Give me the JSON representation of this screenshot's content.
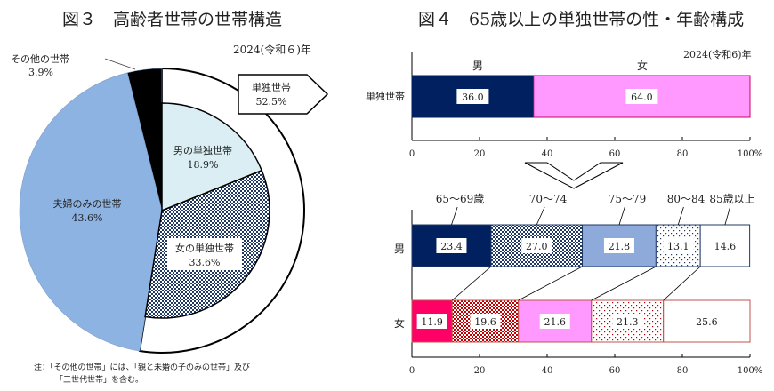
{
  "chart_data": [
    {
      "type": "pie",
      "title": "図３　高齢者世帯の世帯構造",
      "subtitle": "2024(令和６)年",
      "outer": [
        {
          "name": "単独世帯",
          "value": 52.5,
          "label": "52.5%",
          "color": "#ffffff"
        },
        {
          "name": "夫婦のみの世帯",
          "value": 43.6,
          "label": "43.6%",
          "color": "#8db3e2"
        },
        {
          "name": "その他の世帯",
          "value": 3.9,
          "label": "3.9%",
          "color": "#000000"
        }
      ],
      "inner": [
        {
          "name": "男の単独世帯",
          "value": 18.9,
          "label": "18.9%",
          "color": "#dbeef4"
        },
        {
          "name": "女の単独世帯",
          "value": 33.6,
          "label": "33.6%",
          "color": "#1f3864",
          "pattern": "checker"
        }
      ],
      "note_lines": [
        "注：「その他の世帯」には、「親と未婚の子のみの世帯」及び",
        "「三世代世帯」を含む。"
      ]
    },
    {
      "type": "bar",
      "orientation": "horizontal-stacked",
      "title": "図４　65歳以上の単独世帯の性・年齢構成",
      "subtitle": "2024(令和6)年",
      "categories": [
        "単独世帯"
      ],
      "series": [
        {
          "name": "男",
          "values": [
            36.0
          ],
          "label": "36.0",
          "color": "#002060"
        },
        {
          "name": "女",
          "values": [
            64.0
          ],
          "label": "64.0",
          "color": "#ff99ff"
        }
      ],
      "xlim": [
        0,
        100
      ],
      "xticks": [
        "0",
        "20",
        "40",
        "60",
        "80",
        "100"
      ],
      "xunit": "%"
    },
    {
      "type": "bar",
      "orientation": "horizontal-stacked",
      "categories": [
        "男",
        "女"
      ],
      "series": [
        {
          "name": "65～69歳",
          "values": [
            23.4,
            11.9
          ],
          "labels": [
            "23.4",
            "11.9"
          ]
        },
        {
          "name": "70～74",
          "values": [
            27.0,
            19.6
          ],
          "labels": [
            "27.0",
            "19.6"
          ]
        },
        {
          "name": "75～79",
          "values": [
            21.8,
            21.6
          ],
          "labels": [
            "21.8",
            "21.6"
          ]
        },
        {
          "name": "80～84",
          "values": [
            13.1,
            21.3
          ],
          "labels": [
            "13.1",
            "21.3"
          ]
        },
        {
          "name": "85歳以上",
          "values": [
            14.6,
            25.6
          ],
          "labels": [
            "14.6",
            "25.6"
          ]
        }
      ],
      "xlim": [
        0,
        100
      ],
      "xticks": [
        "0",
        "20",
        "40",
        "60",
        "80",
        "100"
      ],
      "xunit": "%",
      "colors": {
        "male": "#002060",
        "male_light": "#8eaadb",
        "female": "#ff0066",
        "female_pattern": "#c00000",
        "female_light": "#ff99ff"
      }
    }
  ]
}
